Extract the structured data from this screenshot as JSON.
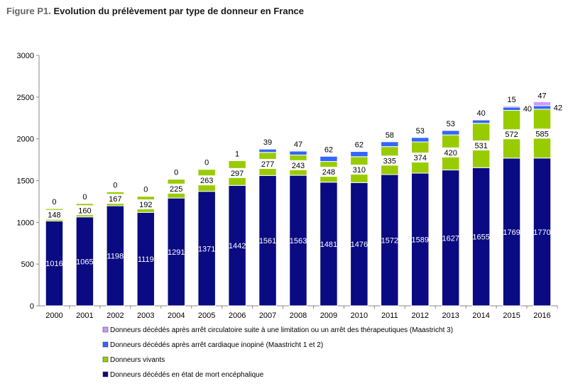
{
  "title_prefix": "Figure P1.",
  "title_main": "Evolution du prélèvement par type de donneur en France",
  "colors": {
    "dme": "#0a0a82",
    "vivants": "#99cc00",
    "m12": "#3366ff",
    "m3": "#cc99ff"
  },
  "chart_data": {
    "type": "bar",
    "stacked": true,
    "categories": [
      "2000",
      "2001",
      "2002",
      "2003",
      "2004",
      "2005",
      "2006",
      "2007",
      "2008",
      "2009",
      "2010",
      "2011",
      "2012",
      "2013",
      "2014",
      "2015",
      "2016"
    ],
    "ylim": [
      0,
      3000
    ],
    "yticks": [
      0,
      500,
      1000,
      1500,
      2000,
      2500,
      3000
    ],
    "legend_position": "bottom",
    "series": [
      {
        "key": "dme",
        "name": "Donneurs décédés en état de mort encéphalique",
        "values": [
          1016,
          1065,
          1198,
          1119,
          1291,
          1371,
          1442,
          1561,
          1563,
          1481,
          1476,
          1572,
          1589,
          1627,
          1655,
          1769,
          1770
        ]
      },
      {
        "key": "vivants",
        "name": "Donneurs vivants",
        "values": [
          148,
          160,
          167,
          192,
          225,
          263,
          297,
          277,
          243,
          248,
          310,
          335,
          374,
          420,
          531,
          572,
          585
        ]
      },
      {
        "key": "m12",
        "name": "Donneurs décédés après arrêt cardiaque inopiné (Maastricht 1 et 2)",
        "values": [
          0,
          0,
          0,
          0,
          0,
          0,
          1,
          39,
          47,
          62,
          62,
          58,
          53,
          53,
          40,
          40,
          42
        ]
      },
      {
        "key": "m3",
        "name": "Donneurs décédés après arrêt circulatoire suite à une limitation ou un arrêt des thérapeutiques (Maastricht 3)",
        "values": [
          0,
          0,
          0,
          0,
          0,
          0,
          0,
          0,
          0,
          0,
          0,
          0,
          0,
          0,
          0,
          15,
          47
        ]
      }
    ]
  }
}
